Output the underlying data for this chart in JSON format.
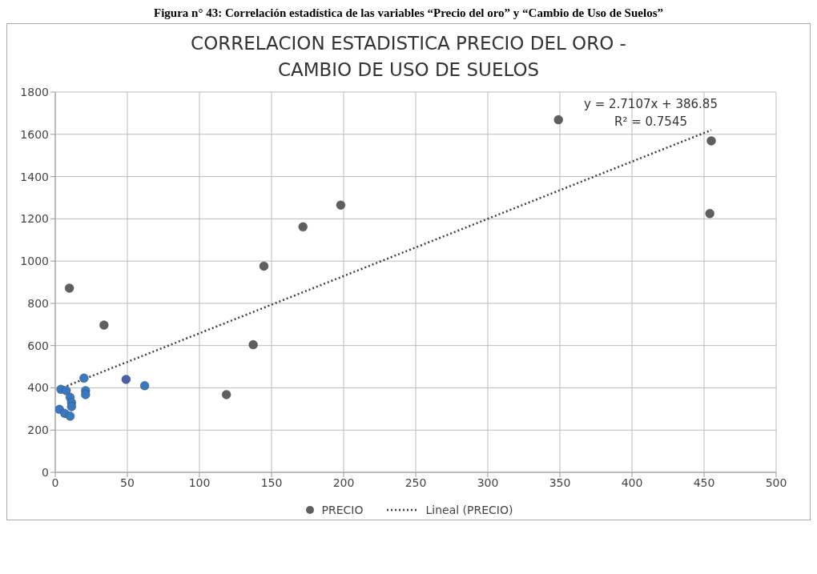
{
  "chart_data": {
    "type": "scatter",
    "title": "CORRELACION ESTADISTICA PRECIO DEL ORO - CAMBIO DE USO DE SUELOS",
    "annotations": [
      "Figura n° 43: Correlación estadística de las variables “Precio del oro” y “Cambio de Uso de Suelos”",
      "y = 2.7107x + 386.85",
      "R² = 0.7545"
    ],
    "xlim": [
      0,
      500
    ],
    "xticks": [
      0,
      50,
      100,
      150,
      200,
      250,
      300,
      350,
      400,
      450,
      500
    ],
    "ylim": [
      0,
      1800
    ],
    "yticks": [
      0,
      200,
      400,
      600,
      800,
      1000,
      1200,
      1400,
      1600,
      1800
    ],
    "grid": true,
    "legend": "bottom",
    "series": [
      {
        "name": "PRECIO",
        "marker": "circle",
        "color": "#5f5f5f",
        "x": [
          9.8,
          33.8,
          144.7,
          171.8,
          198,
          137.3,
          455,
          454,
          349,
          118.7,
          62,
          49.1,
          19.9,
          21,
          21,
          3.9,
          7.6,
          10.3,
          11.3,
          11.3,
          2.9,
          6.6,
          10.3
        ],
        "values": [
          872,
          697,
          976,
          1162,
          1265,
          604,
          1569,
          1225,
          1669,
          368,
          410,
          440,
          446,
          387,
          368,
          393,
          387,
          355,
          330,
          311,
          298,
          279,
          266
        ],
        "colors": [
          "#5f5f5f",
          "#5f5f5f",
          "#5f5f5f",
          "#5f5f5f",
          "#5f5f5f",
          "#5f5f5f",
          "#5f5f5f",
          "#5f5f5f",
          "#5f5f5f",
          "#5f5f5f",
          "#3a78c0",
          "#4a5fb0",
          "#3a78c0",
          "#3a78c0",
          "#3a78c0",
          "#3a78c0",
          "#3a78c0",
          "#3a78c0",
          "#3a78c0",
          "#3a78c0",
          "#3a78c0",
          "#3a78c0",
          "#3a78c0"
        ]
      },
      {
        "name": "Lineal (PRECIO)",
        "type": "line",
        "color": "#404040",
        "line_style": "dotted",
        "marker": "none",
        "x": [
          2.9,
          455
        ],
        "values": [
          395,
          1620
        ]
      }
    ]
  }
}
